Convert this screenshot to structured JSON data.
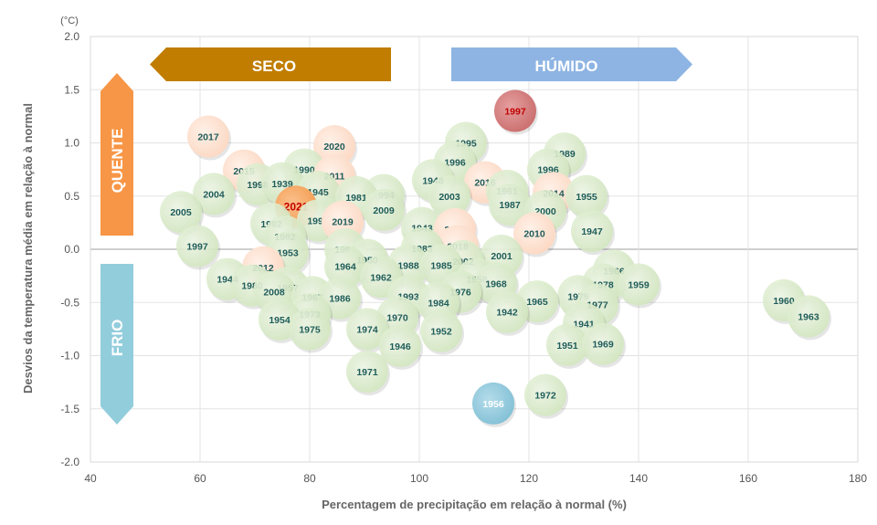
{
  "chart_data": {
    "type": "scatter",
    "xlabel": "Percentagem de precipitação em relação à normal (%)",
    "ylabel": "Desvios da temperatura média em relação à normal",
    "yunit": "(°C)",
    "xlim": [
      40,
      180
    ],
    "ylim": [
      -2.0,
      2.0
    ],
    "xticks": [
      40,
      60,
      80,
      100,
      120,
      140,
      160,
      180
    ],
    "yticks": [
      "2.0",
      "1.5",
      "1.0",
      "0.5",
      "0.0",
      "-0.5",
      "-1.0",
      "-1.5",
      "-2.0"
    ],
    "grid": true,
    "arrows": {
      "dry": "SECO",
      "wet": "HÚMIDO",
      "hot": "QUENTE",
      "cold": "FRIO"
    },
    "colors": {
      "normal": "#d9ebc8",
      "recent": "#fde0cf",
      "highlight": "#f7a55e",
      "hottest": "#cf7878",
      "coldest": "#8cc8dc",
      "label": "#1f5c5a",
      "label_highlight": "#c00000",
      "dry_arrow": "#c07d00",
      "wet_arrow": "#8eb4e3",
      "hot_arrow": "#f79646",
      "cold_arrow": "#92cddc"
    },
    "points": [
      {
        "year": "1997",
        "x": 117.5,
        "y": 1.3,
        "style": "hottest"
      },
      {
        "year": "2017",
        "x": 61.5,
        "y": 1.06,
        "style": "recent"
      },
      {
        "year": "1995",
        "x": 108.5,
        "y": 1.0,
        "style": "normal"
      },
      {
        "year": "2020",
        "x": 84.5,
        "y": 0.97,
        "style": "recent"
      },
      {
        "year": "1989",
        "x": 126.5,
        "y": 0.9,
        "style": "normal"
      },
      {
        "year": "1996",
        "x": 106.5,
        "y": 0.82,
        "style": "normal"
      },
      {
        "year": "1996",
        "x": 123.5,
        "y": 0.75,
        "style": "normal"
      },
      {
        "year": "2015",
        "x": 68.0,
        "y": 0.74,
        "style": "recent"
      },
      {
        "year": "1990",
        "x": 79.0,
        "y": 0.75,
        "style": "normal"
      },
      {
        "year": "2011",
        "x": 84.5,
        "y": 0.69,
        "style": "recent"
      },
      {
        "year": "1998",
        "x": 70.5,
        "y": 0.61,
        "style": "normal"
      },
      {
        "year": "1939",
        "x": 75.0,
        "y": 0.62,
        "style": "normal"
      },
      {
        "year": "1948",
        "x": 102.5,
        "y": 0.65,
        "style": "normal"
      },
      {
        "year": "2016",
        "x": 112.0,
        "y": 0.63,
        "style": "recent"
      },
      {
        "year": "1945",
        "x": 81.5,
        "y": 0.54,
        "style": "normal"
      },
      {
        "year": "1961",
        "x": 116.0,
        "y": 0.55,
        "style": "normal"
      },
      {
        "year": "2014",
        "x": 124.5,
        "y": 0.53,
        "style": "recent"
      },
      {
        "year": "2004",
        "x": 62.5,
        "y": 0.52,
        "style": "normal"
      },
      {
        "year": "1994",
        "x": 93.5,
        "y": 0.51,
        "style": "normal"
      },
      {
        "year": "2003",
        "x": 105.5,
        "y": 0.5,
        "style": "normal"
      },
      {
        "year": "1955",
        "x": 130.5,
        "y": 0.5,
        "style": "normal"
      },
      {
        "year": "1981",
        "x": 88.5,
        "y": 0.49,
        "style": "normal"
      },
      {
        "year": "1987",
        "x": 116.5,
        "y": 0.42,
        "style": "normal"
      },
      {
        "year": "2021",
        "x": 77.5,
        "y": 0.4,
        "style": "highlight"
      },
      {
        "year": "2009",
        "x": 93.5,
        "y": 0.37,
        "style": "normal"
      },
      {
        "year": "2000",
        "x": 123.0,
        "y": 0.36,
        "style": "normal"
      },
      {
        "year": "2005",
        "x": 56.5,
        "y": 0.35,
        "style": "normal"
      },
      {
        "year": "1991",
        "x": 81.5,
        "y": 0.27,
        "style": "normal"
      },
      {
        "year": "2019",
        "x": 86.0,
        "y": 0.26,
        "style": "recent"
      },
      {
        "year": "1992",
        "x": 73.0,
        "y": 0.24,
        "style": "normal"
      },
      {
        "year": "1943",
        "x": 100.5,
        "y": 0.2,
        "style": "normal"
      },
      {
        "year": "2013",
        "x": 106.5,
        "y": 0.19,
        "style": "recent"
      },
      {
        "year": "1947",
        "x": 131.5,
        "y": 0.17,
        "style": "normal"
      },
      {
        "year": "2010",
        "x": 121.0,
        "y": 0.15,
        "style": "recent"
      },
      {
        "year": "1982",
        "x": 75.5,
        "y": 0.12,
        "style": "normal"
      },
      {
        "year": "1997",
        "x": 59.5,
        "y": 0.03,
        "style": "normal"
      },
      {
        "year": "2018",
        "x": 107.0,
        "y": 0.03,
        "style": "recent"
      },
      {
        "year": "1983",
        "x": 100.5,
        "y": 0.01,
        "style": "normal"
      },
      {
        "year": "1999",
        "x": 86.5,
        "y": 0.0,
        "style": "normal"
      },
      {
        "year": "1953",
        "x": 76.0,
        "y": -0.03,
        "style": "normal"
      },
      {
        "year": "2001",
        "x": 115.0,
        "y": -0.06,
        "style": "normal"
      },
      {
        "year": "1950",
        "x": 90.5,
        "y": -0.1,
        "style": "normal"
      },
      {
        "year": "2002",
        "x": 108.0,
        "y": -0.11,
        "style": "normal"
      },
      {
        "year": "1988",
        "x": 98.0,
        "y": -0.15,
        "style": "normal"
      },
      {
        "year": "1985",
        "x": 104.0,
        "y": -0.15,
        "style": "normal"
      },
      {
        "year": "1964",
        "x": 86.5,
        "y": -0.16,
        "style": "normal"
      },
      {
        "year": "2012",
        "x": 71.5,
        "y": -0.17,
        "style": "recent"
      },
      {
        "year": "1966",
        "x": 135.5,
        "y": -0.2,
        "style": "normal"
      },
      {
        "year": "1962",
        "x": 93.0,
        "y": -0.26,
        "style": "normal"
      },
      {
        "year": "1958",
        "x": 110.5,
        "y": -0.28,
        "style": "normal"
      },
      {
        "year": "1944",
        "x": 65.0,
        "y": -0.28,
        "style": "normal"
      },
      {
        "year": "1968",
        "x": 114.0,
        "y": -0.32,
        "style": "normal"
      },
      {
        "year": "1980",
        "x": 69.5,
        "y": -0.34,
        "style": "normal"
      },
      {
        "year": "1978",
        "x": 133.5,
        "y": -0.33,
        "style": "normal"
      },
      {
        "year": "1959",
        "x": 140.0,
        "y": -0.33,
        "style": "normal"
      },
      {
        "year": "1957",
        "x": 76.0,
        "y": -0.36,
        "style": "normal"
      },
      {
        "year": "2008",
        "x": 73.5,
        "y": -0.4,
        "style": "normal"
      },
      {
        "year": "1976",
        "x": 107.5,
        "y": -0.4,
        "style": "normal"
      },
      {
        "year": "1993",
        "x": 98.0,
        "y": -0.44,
        "style": "normal"
      },
      {
        "year": "1979",
        "x": 129.0,
        "y": -0.44,
        "style": "normal"
      },
      {
        "year": "1967",
        "x": 80.5,
        "y": -0.45,
        "style": "normal"
      },
      {
        "year": "1986",
        "x": 85.5,
        "y": -0.46,
        "style": "normal"
      },
      {
        "year": "1965",
        "x": 121.5,
        "y": -0.49,
        "style": "normal"
      },
      {
        "year": "1984",
        "x": 103.5,
        "y": -0.5,
        "style": "normal"
      },
      {
        "year": "1977",
        "x": 132.5,
        "y": -0.52,
        "style": "normal"
      },
      {
        "year": "1960",
        "x": 166.5,
        "y": -0.48,
        "style": "normal"
      },
      {
        "year": "1942",
        "x": 116.0,
        "y": -0.59,
        "style": "normal"
      },
      {
        "year": "1973",
        "x": 80.0,
        "y": -0.61,
        "style": "normal"
      },
      {
        "year": "1970",
        "x": 96.0,
        "y": -0.64,
        "style": "normal"
      },
      {
        "year": "1963",
        "x": 171.0,
        "y": -0.63,
        "style": "normal"
      },
      {
        "year": "1954",
        "x": 74.5,
        "y": -0.66,
        "style": "normal"
      },
      {
        "year": "1941",
        "x": 130.0,
        "y": -0.7,
        "style": "normal"
      },
      {
        "year": "1974",
        "x": 90.5,
        "y": -0.75,
        "style": "normal"
      },
      {
        "year": "1975",
        "x": 80.0,
        "y": -0.75,
        "style": "normal"
      },
      {
        "year": "1952",
        "x": 104.0,
        "y": -0.77,
        "style": "normal"
      },
      {
        "year": "1951",
        "x": 127.0,
        "y": -0.9,
        "style": "normal"
      },
      {
        "year": "1969",
        "x": 133.5,
        "y": -0.89,
        "style": "normal"
      },
      {
        "year": "1946",
        "x": 96.5,
        "y": -0.91,
        "style": "normal"
      },
      {
        "year": "1971",
        "x": 90.5,
        "y": -1.15,
        "style": "normal"
      },
      {
        "year": "1972",
        "x": 123.0,
        "y": -1.37,
        "style": "normal"
      },
      {
        "year": "1956",
        "x": 113.5,
        "y": -1.45,
        "style": "coldest"
      }
    ]
  }
}
